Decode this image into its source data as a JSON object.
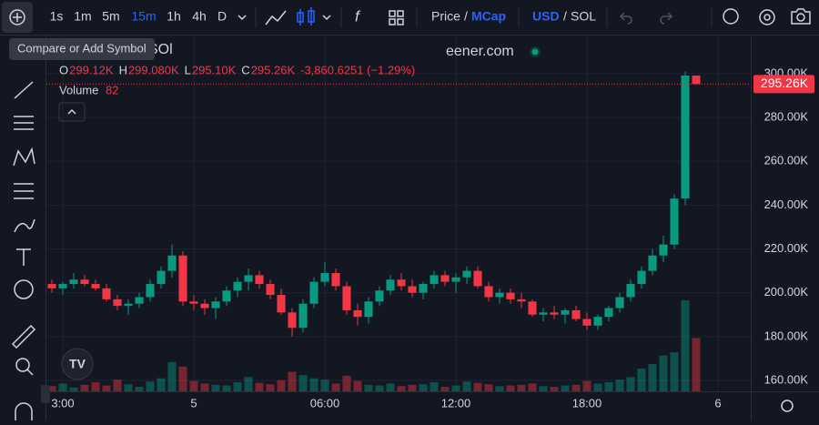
{
  "toolbar": {
    "intervals": [
      "1s",
      "1m",
      "5m",
      "15m",
      "1h",
      "4h",
      "D"
    ],
    "active_interval": 3,
    "price": "Price",
    "price_sep": "/",
    "mcap": "MCap",
    "usd": "USD",
    "quote_sep": "/",
    "sol": "SOL"
  },
  "tooltip": "Compare or Add Symbol",
  "symbol_fragment": "SOl",
  "watermark_fragment": "eener.com",
  "legend": {
    "items": [
      [
        "O",
        "299.12K"
      ],
      [
        "H",
        "299.080K"
      ],
      [
        "L",
        "295.10K"
      ],
      [
        "C",
        "295.26K"
      ]
    ],
    "change": "-3,860.6251 (−1.29%)",
    "volume_label": "Volume",
    "volume_value": "82"
  },
  "chart_data": {
    "type": "candlestick",
    "up_color": "#089981",
    "down_color": "#f23645",
    "candles": [
      [
        204000,
        206000,
        200000,
        202000
      ],
      [
        202000,
        205000,
        199000,
        204000
      ],
      [
        204000,
        209000,
        202000,
        206000
      ],
      [
        206000,
        208000,
        203000,
        204000
      ],
      [
        204000,
        206000,
        201000,
        202000
      ],
      [
        202000,
        204000,
        196000,
        197000
      ],
      [
        197000,
        199000,
        192000,
        194000
      ],
      [
        194000,
        197000,
        190000,
        195000
      ],
      [
        195000,
        200000,
        193000,
        198000
      ],
      [
        198000,
        206000,
        196000,
        204000
      ],
      [
        204000,
        212000,
        202000,
        210000
      ],
      [
        210000,
        222000,
        207000,
        217000
      ],
      [
        217000,
        219000,
        194000,
        196000
      ],
      [
        196000,
        199000,
        192000,
        195000
      ],
      [
        195000,
        197000,
        190000,
        193000
      ],
      [
        193000,
        198000,
        188000,
        196000
      ],
      [
        196000,
        203000,
        194000,
        201000
      ],
      [
        201000,
        207000,
        198000,
        205000
      ],
      [
        205000,
        211000,
        201000,
        208000
      ],
      [
        208000,
        210000,
        202000,
        204000
      ],
      [
        204000,
        206000,
        197000,
        199000
      ],
      [
        199000,
        202000,
        190000,
        191000
      ],
      [
        191000,
        193000,
        180000,
        184000
      ],
      [
        184000,
        197000,
        182000,
        195000
      ],
      [
        195000,
        207000,
        193000,
        205000
      ],
      [
        205000,
        214000,
        203000,
        209000
      ],
      [
        209000,
        211000,
        201000,
        203000
      ],
      [
        203000,
        205000,
        190000,
        192000
      ],
      [
        192000,
        195000,
        185000,
        189000
      ],
      [
        189000,
        198000,
        186000,
        196000
      ],
      [
        196000,
        203000,
        194000,
        201000
      ],
      [
        201000,
        208000,
        199000,
        206000
      ],
      [
        206000,
        209000,
        201000,
        203000
      ],
      [
        203000,
        206000,
        198000,
        200000
      ],
      [
        200000,
        205000,
        197000,
        204000
      ],
      [
        204000,
        210000,
        202000,
        208000
      ],
      [
        208000,
        210000,
        203000,
        205000
      ],
      [
        205000,
        209000,
        200000,
        207000
      ],
      [
        207000,
        212000,
        204000,
        210000
      ],
      [
        210000,
        212000,
        202000,
        203000
      ],
      [
        203000,
        205000,
        196000,
        198000
      ],
      [
        198000,
        202000,
        195000,
        200000
      ],
      [
        200000,
        202000,
        195000,
        197000
      ],
      [
        197000,
        200000,
        193000,
        196000
      ],
      [
        196000,
        197000,
        189000,
        190000
      ],
      [
        190000,
        193000,
        187000,
        191000
      ],
      [
        191000,
        194000,
        188000,
        190000
      ],
      [
        190000,
        193000,
        186000,
        192000
      ],
      [
        192000,
        194000,
        187000,
        188000
      ],
      [
        188000,
        191000,
        183000,
        185000
      ],
      [
        185000,
        190000,
        183000,
        189000
      ],
      [
        189000,
        194000,
        187000,
        193000
      ],
      [
        193000,
        200000,
        191000,
        198000
      ],
      [
        198000,
        206000,
        196000,
        204000
      ],
      [
        204000,
        212000,
        202000,
        210000
      ],
      [
        210000,
        220000,
        208000,
        217000
      ],
      [
        217000,
        226000,
        214000,
        222000
      ],
      [
        222000,
        245000,
        220000,
        243000
      ],
      [
        243000,
        301000,
        240000,
        299120
      ],
      [
        299120,
        299080,
        295100,
        295260
      ]
    ],
    "volumes": [
      8,
      12,
      6,
      10,
      14,
      9,
      18,
      11,
      7,
      15,
      20,
      45,
      38,
      16,
      12,
      10,
      9,
      14,
      22,
      13,
      11,
      17,
      30,
      25,
      20,
      18,
      12,
      24,
      16,
      10,
      9,
      12,
      8,
      10,
      11,
      14,
      7,
      9,
      15,
      13,
      11,
      8,
      9,
      10,
      12,
      8,
      7,
      9,
      10,
      16,
      12,
      14,
      18,
      22,
      35,
      42,
      55,
      60,
      140,
      82
    ],
    "last_price_label": "295.26K",
    "xlim": [
      -0.5,
      64
    ],
    "xticks": [
      {
        "value": 1,
        "label": "3:00"
      },
      {
        "value": 13,
        "label": "5"
      },
      {
        "value": 25,
        "label": "06:00"
      },
      {
        "value": 37,
        "label": "12:00"
      },
      {
        "value": 49,
        "label": "18:00"
      },
      {
        "value": 61,
        "label": "6"
      }
    ],
    "ylim": [
      155000,
      317000
    ],
    "yticks": [
      {
        "value": 160000,
        "label": "160.00K"
      },
      {
        "value": 180000,
        "label": "180.00K"
      },
      {
        "value": 200000,
        "label": "200.00K"
      },
      {
        "value": 220000,
        "label": "220.00K"
      },
      {
        "value": 240000,
        "label": "240.00K"
      },
      {
        "value": 260000,
        "label": "260.00K"
      },
      {
        "value": 280000,
        "label": "280.00K"
      },
      {
        "value": 300000,
        "label": "300.00K"
      }
    ],
    "grid": true
  }
}
